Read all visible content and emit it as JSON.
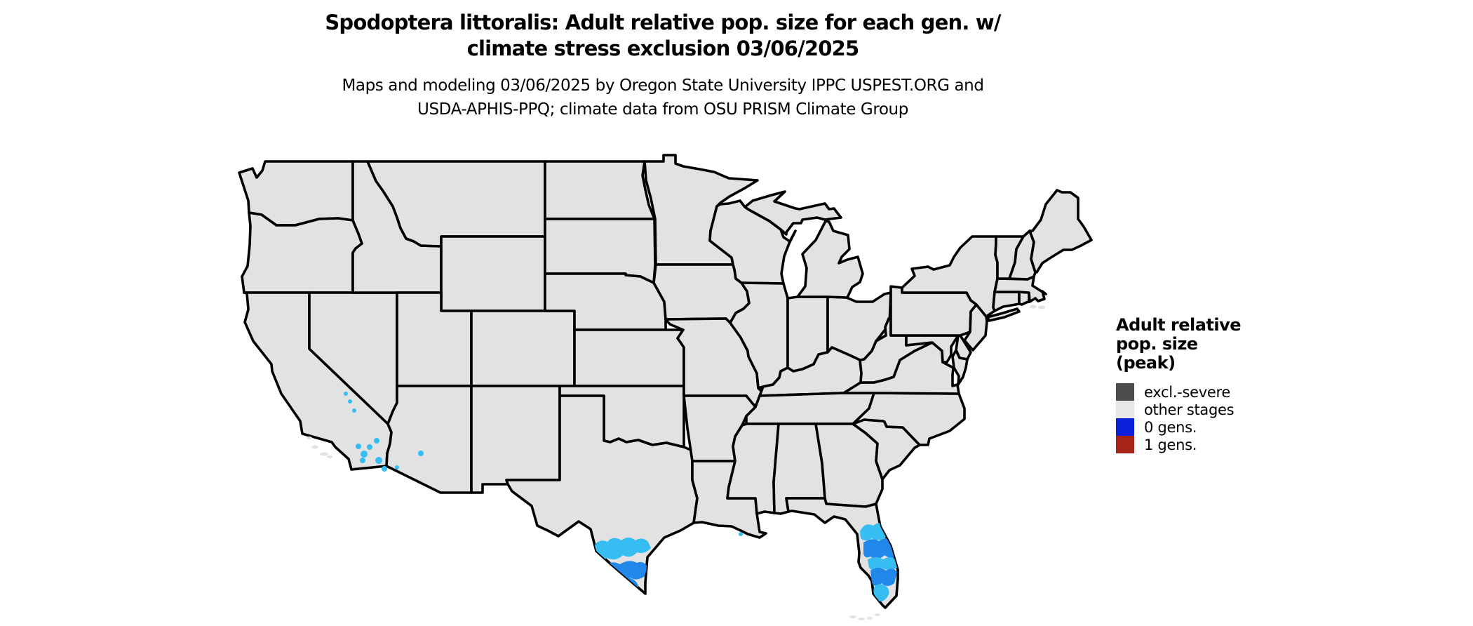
{
  "title": {
    "line1": "Spodoptera littoralis: Adult relative pop. size for each gen. w/",
    "line2": "climate stress exclusion 03/06/2025"
  },
  "subtitle": {
    "line1": "Maps and modeling 03/06/2025 by Oregon State University IPPC USPEST.ORG and",
    "line2": "USDA-APHIS-PPQ; climate data from OSU PRISM Climate Group"
  },
  "legend": {
    "title_lines": [
      "Adult relative",
      "pop. size",
      "(peak)"
    ],
    "items": [
      {
        "label": "excl.-severe",
        "color": "#4d4d4d"
      },
      {
        "label": "other stages",
        "color": "#e8e8e8"
      },
      {
        "label": "0 gens.",
        "color": "#0b20d8"
      },
      {
        "label": "1 gens.",
        "color": "#a62417"
      }
    ]
  },
  "map": {
    "background": "#ffffff",
    "state_fill": "#e2e2e2",
    "state_border": "#000000",
    "pop_low_color": "#36bef2",
    "pop_mid_color": "#2187e8",
    "active_regions": [
      "southern Texas",
      "central and southern Florida",
      "southern California",
      "southwestern Arizona",
      "coastal Louisiana"
    ]
  }
}
